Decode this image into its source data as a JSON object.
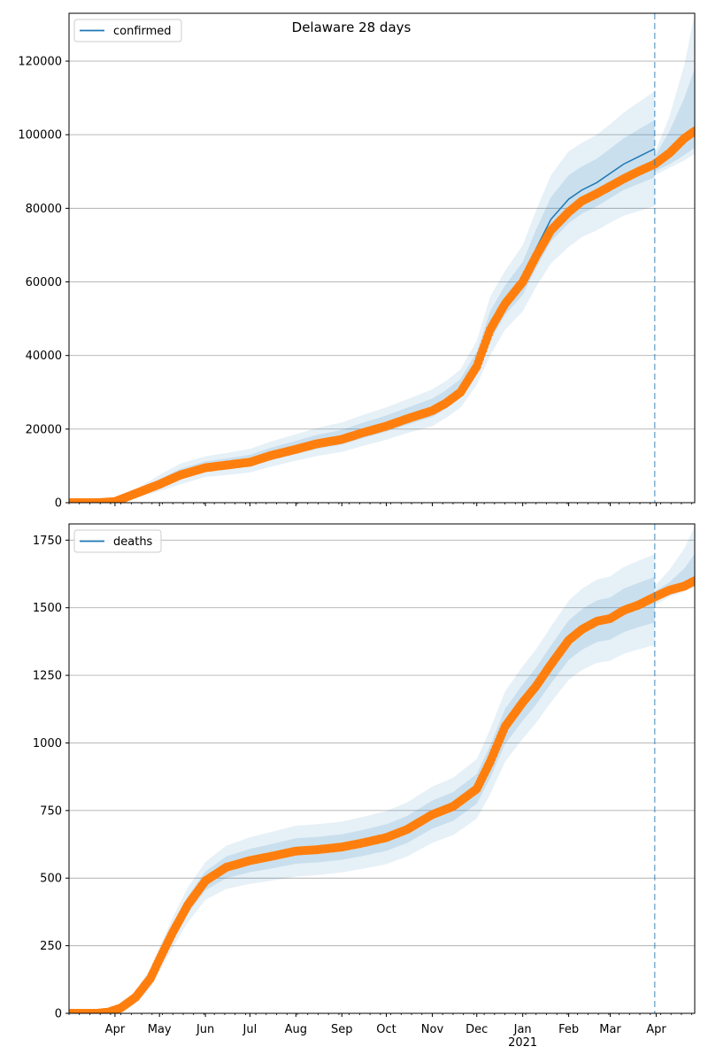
{
  "title": "Delaware 28 days",
  "colors": {
    "model": "#1f77b4",
    "observed": "#ff7f0e",
    "band": "#1f77b4",
    "grid": "#b0b0b0",
    "vline": "#1f77b4"
  },
  "x_axis": {
    "month_labels": [
      "Apr",
      "May",
      "Jun",
      "Jul",
      "Aug",
      "Sep",
      "Oct",
      "Nov",
      "Dec",
      "Jan",
      "Feb",
      "Mar",
      "Apr"
    ],
    "year_label": "2021"
  },
  "chart_data": [
    {
      "type": "line",
      "legend": "confirmed",
      "legend_placement": "top-left",
      "grid": true,
      "x_unit": "date",
      "xlim": [
        "2020-03-01",
        "2021-04-27"
      ],
      "ylim": [
        0,
        133000
      ],
      "yticks": [
        0,
        20000,
        40000,
        60000,
        80000,
        100000,
        120000
      ],
      "ytick_labels": [
        "0",
        "20000",
        "40000",
        "60000",
        "80000",
        "100000",
        "120000"
      ],
      "forecast_start": "2021-03-31",
      "observed": {
        "x": [
          "2020-03-01",
          "2020-03-20",
          "2020-04-01",
          "2020-04-15",
          "2020-05-01",
          "2020-05-15",
          "2020-06-01",
          "2020-06-15",
          "2020-07-01",
          "2020-07-15",
          "2020-08-01",
          "2020-08-15",
          "2020-09-01",
          "2020-09-15",
          "2020-10-01",
          "2020-10-15",
          "2020-11-01",
          "2020-11-10",
          "2020-11-20",
          "2020-12-01",
          "2020-12-10",
          "2020-12-20",
          "2021-01-01",
          "2021-01-10",
          "2021-01-20",
          "2021-02-01",
          "2021-02-10",
          "2021-02-20",
          "2021-03-01",
          "2021-03-10",
          "2021-03-20",
          "2021-03-31",
          "2021-04-10",
          "2021-04-20",
          "2021-04-27"
        ],
        "y": [
          0,
          0,
          300,
          2500,
          5000,
          7500,
          9500,
          10200,
          11000,
          12800,
          14500,
          16000,
          17200,
          19000,
          20800,
          22800,
          25000,
          27000,
          30000,
          37000,
          47000,
          54000,
          60000,
          67000,
          74000,
          79000,
          82000,
          84000,
          86000,
          88000,
          90000,
          92000,
          95000,
          99000,
          101000
        ]
      },
      "model": {
        "x": [
          "2020-03-01",
          "2020-03-20",
          "2020-04-01",
          "2020-04-15",
          "2020-05-01",
          "2020-05-15",
          "2020-06-01",
          "2020-06-15",
          "2020-07-01",
          "2020-07-15",
          "2020-08-01",
          "2020-08-15",
          "2020-09-01",
          "2020-09-15",
          "2020-10-01",
          "2020-10-15",
          "2020-11-01",
          "2020-11-10",
          "2020-11-20",
          "2020-12-01",
          "2020-12-10",
          "2020-12-20",
          "2021-01-01",
          "2021-01-10",
          "2021-01-20",
          "2021-02-01",
          "2021-02-10",
          "2021-02-20",
          "2021-03-01",
          "2021-03-10",
          "2021-03-20",
          "2021-03-31"
        ],
        "y": [
          0,
          0,
          300,
          2500,
          5300,
          7800,
          9800,
          10500,
          11400,
          13200,
          15000,
          16500,
          17800,
          19600,
          21500,
          23500,
          25800,
          28000,
          31000,
          38000,
          48000,
          55000,
          61000,
          69000,
          77000,
          82500,
          85000,
          87000,
          89500,
          92000,
          94000,
          96200
        ],
        "bands": [
          {
            "lower": [
              0,
              0,
              200,
              1900,
              4200,
              6400,
              8400,
              9000,
              9800,
              11500,
              13200,
              14600,
              15800,
              17500,
              19300,
              21200,
              23300,
              25500,
              28400,
              35000,
              44000,
              51000,
              56500,
              63800,
              71000,
              76000,
              78600,
              80500,
              82800,
              85000,
              86600,
              88400
            ],
            "upper": [
              0,
              0,
              400,
              3100,
              6400,
              9200,
              11200,
              12000,
              13000,
              14900,
              16800,
              18400,
              19800,
              21700,
              23700,
              25800,
              28300,
              30500,
              33600,
              41000,
              52000,
              59000,
              65500,
              74200,
              83000,
              89000,
              91400,
              93500,
              96200,
              99000,
              101400,
              104000
            ]
          },
          {
            "lower": [
              0,
              0,
              100,
              1300,
              3100,
              5000,
              7000,
              7500,
              8200,
              9800,
              11400,
              12700,
              13800,
              15400,
              17100,
              18900,
              20800,
              23000,
              25800,
              32000,
              40000,
              47000,
              52000,
              58600,
              65000,
              69500,
              72200,
              74000,
              76100,
              78000,
              79200,
              80600
            ],
            "upper": [
              0,
              0,
              500,
              3700,
              7500,
              10600,
              12600,
              13500,
              14600,
              16600,
              18600,
              20300,
              21800,
              23800,
              25900,
              28100,
              30800,
              33000,
              36200,
              44000,
              56000,
              63000,
              70000,
              79400,
              89000,
              95500,
              97800,
              100000,
              102900,
              106000,
              108800,
              111800
            ]
          }
        ]
      },
      "forecast": {
        "x": [
          "2021-03-31",
          "2021-04-10",
          "2021-04-20",
          "2021-04-27"
        ],
        "y": [
          92000,
          95500,
          98800,
          101500
        ],
        "bands": [
          {
            "lower": [
              90000,
              92000,
              94500,
              96500
            ],
            "upper": [
              94000,
              101000,
              110000,
              118000
            ]
          },
          {
            "lower": [
              89000,
              91000,
              93000,
              94800
            ],
            "upper": [
              95000,
              105000,
              119000,
              133000
            ]
          }
        ]
      }
    },
    {
      "type": "line",
      "legend": "deaths",
      "legend_placement": "top-left",
      "grid": true,
      "x_unit": "date",
      "xlim": [
        "2020-03-01",
        "2021-04-27"
      ],
      "ylim": [
        0,
        1810
      ],
      "yticks": [
        0,
        250,
        500,
        750,
        1000,
        1250,
        1500,
        1750
      ],
      "ytick_labels": [
        "0",
        "250",
        "500",
        "750",
        "1000",
        "1250",
        "1500",
        "1750"
      ],
      "forecast_start": "2021-03-31",
      "observed": {
        "x": [
          "2020-03-01",
          "2020-03-20",
          "2020-03-28",
          "2020-04-05",
          "2020-04-15",
          "2020-04-25",
          "2020-05-01",
          "2020-05-10",
          "2020-05-20",
          "2020-06-01",
          "2020-06-15",
          "2020-07-01",
          "2020-07-15",
          "2020-08-01",
          "2020-08-15",
          "2020-09-01",
          "2020-09-15",
          "2020-10-01",
          "2020-10-15",
          "2020-11-01",
          "2020-11-15",
          "2020-12-01",
          "2020-12-10",
          "2020-12-20",
          "2021-01-01",
          "2021-01-10",
          "2021-01-20",
          "2021-02-01",
          "2021-02-10",
          "2021-02-20",
          "2021-03-01",
          "2021-03-10",
          "2021-03-20",
          "2021-03-31",
          "2021-04-10",
          "2021-04-20",
          "2021-04-27"
        ],
        "y": [
          0,
          0,
          5,
          20,
          60,
          130,
          200,
          300,
          400,
          490,
          540,
          565,
          580,
          600,
          605,
          615,
          630,
          650,
          680,
          735,
          765,
          830,
          930,
          1060,
          1150,
          1210,
          1290,
          1380,
          1420,
          1450,
          1460,
          1490,
          1510,
          1540,
          1565,
          1580,
          1600
        ]
      },
      "model": {
        "x": [
          "2020-03-01",
          "2020-03-20",
          "2020-03-28",
          "2020-04-05",
          "2020-04-15",
          "2020-04-25",
          "2020-05-01",
          "2020-05-10",
          "2020-05-20",
          "2020-06-01",
          "2020-06-15",
          "2020-07-01",
          "2020-07-15",
          "2020-08-01",
          "2020-08-15",
          "2020-09-01",
          "2020-09-15",
          "2020-10-01",
          "2020-10-15",
          "2020-11-01",
          "2020-11-15",
          "2020-12-01",
          "2020-12-10",
          "2020-12-20",
          "2021-01-01",
          "2021-01-10",
          "2021-01-20",
          "2021-02-01",
          "2021-02-10",
          "2021-02-20",
          "2021-03-01",
          "2021-03-10",
          "2021-03-20",
          "2021-03-31"
        ],
        "y": [
          0,
          0,
          5,
          20,
          60,
          130,
          200,
          300,
          400,
          490,
          540,
          565,
          580,
          600,
          605,
          615,
          630,
          650,
          680,
          735,
          765,
          830,
          930,
          1060,
          1150,
          1210,
          1290,
          1380,
          1420,
          1450,
          1460,
          1490,
          1510,
          1530
        ],
        "bands": [
          {
            "lower": [
              0,
              0,
              3,
              14,
              48,
              112,
              178,
              272,
              368,
              455,
              500,
              522,
              535,
              553,
              558,
              568,
              582,
              601,
              630,
              683,
              712,
              775,
              870,
              995,
              1083,
              1142,
              1220,
              1307,
              1345,
              1373,
              1382,
              1410,
              1428,
              1446
            ],
            "upper": [
              0,
              0,
              7,
              26,
              72,
              148,
              222,
              328,
              432,
              525,
              580,
              608,
              625,
              647,
              652,
              662,
              678,
              699,
              730,
              787,
              818,
              885,
              990,
              1125,
              1217,
              1278,
              1360,
              1453,
              1495,
              1527,
              1538,
              1570,
              1592,
              1614
            ]
          },
          {
            "lower": [
              0,
              0,
              1,
              8,
              36,
              94,
              156,
              244,
              336,
              420,
              460,
              479,
              490,
              506,
              511,
              521,
              534,
              552,
              580,
              631,
              659,
              720,
              810,
              930,
              1016,
              1074,
              1150,
              1234,
              1270,
              1296,
              1304,
              1330,
              1346,
              1362
            ],
            "upper": [
              0,
              0,
              9,
              32,
              84,
              166,
              244,
              356,
              464,
              560,
              620,
              651,
              670,
              694,
              699,
              709,
              726,
              748,
              780,
              839,
              871,
              940,
              1050,
              1190,
              1284,
              1346,
              1430,
              1526,
              1570,
              1604,
              1616,
              1650,
              1674,
              1698
            ]
          }
        ]
      },
      "forecast": {
        "x": [
          "2021-03-31",
          "2021-04-10",
          "2021-04-20",
          "2021-04-27"
        ],
        "y": [
          1540,
          1565,
          1585,
          1600
        ],
        "bands": [
          {
            "lower": [
              1520,
              1550,
              1570,
              1585
            ],
            "upper": [
              1560,
              1595,
              1645,
              1700
            ]
          },
          {
            "lower": [
              1510,
              1540,
              1560,
              1575
            ],
            "upper": [
              1580,
              1640,
              1720,
              1800
            ]
          }
        ]
      }
    }
  ]
}
